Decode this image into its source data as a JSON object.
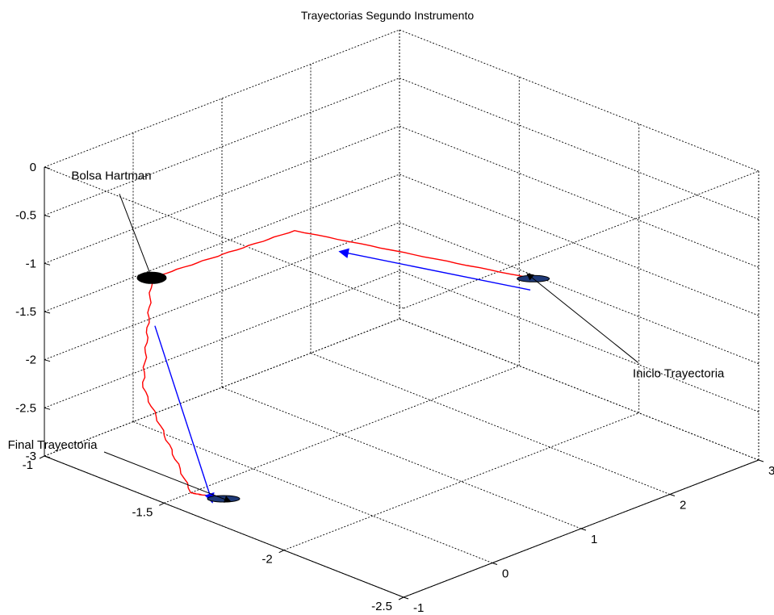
{
  "chart_data": {
    "type": "line3d",
    "title": "Trayectorias  Segundo Instrumento",
    "xlabel": "",
    "ylabel": "",
    "zlabel": "",
    "grid": true,
    "axes": {
      "x": {
        "ticks": [
          -2.5,
          -2,
          -1.5,
          -1
        ],
        "tick_labels": [
          "-2.5",
          "-2",
          "-1.5",
          "-1"
        ]
      },
      "y": {
        "ticks": [
          -1,
          0,
          1,
          2,
          3
        ],
        "tick_labels": [
          "-1",
          "0",
          "1",
          "2",
          "3"
        ]
      },
      "z": {
        "ticks": [
          -3,
          -2.5,
          -2,
          -1.5,
          -1,
          -0.5,
          0
        ],
        "tick_labels": [
          "-3",
          "-2.5",
          "-2",
          "-1.5",
          "-1",
          "-0.5",
          "0"
        ]
      }
    },
    "series": [
      {
        "color": "#ff0000",
        "style": "solid",
        "points": [
          [
            -2.3,
            1.0,
            -0.6
          ],
          [
            -1.6,
            0.2,
            -0.5
          ],
          [
            -1.3,
            -0.6,
            -1.0
          ],
          [
            -1.3,
            -0.7,
            -2.1
          ],
          [
            -1.5,
            -0.7,
            -3.0
          ],
          [
            -1.6,
            -0.6,
            -3.0
          ]
        ]
      }
    ],
    "markers": [
      {
        "name": "Bolsa Hartman",
        "color": "#000000",
        "point": [
          -1.3,
          -0.6,
          -1.0
        ]
      },
      {
        "name": "Inicio Trayectoria",
        "color": "#1f3a78",
        "point": [
          -2.3,
          1.0,
          -0.6
        ]
      },
      {
        "name": "Final Trayectoria",
        "color": "#1f3a78",
        "point": [
          -1.6,
          -0.6,
          -3.0
        ]
      }
    ],
    "annotations": [
      {
        "text": "Bolsa Hartman",
        "target": "Bolsa Hartman"
      },
      {
        "text": "Inicio Trayectoria",
        "target": "Inicio Trayectoria"
      },
      {
        "text": "Final Trayectoria",
        "target": "Final Trayectoria"
      }
    ],
    "direction_arrows": {
      "color": "#0000ff",
      "count": 2
    },
    "colors": {
      "trajectory": "#ff0000",
      "arrow": "#0000ff",
      "marker_blue": "#1f3a78",
      "marker_black": "#000000",
      "grid": "#000000"
    }
  }
}
